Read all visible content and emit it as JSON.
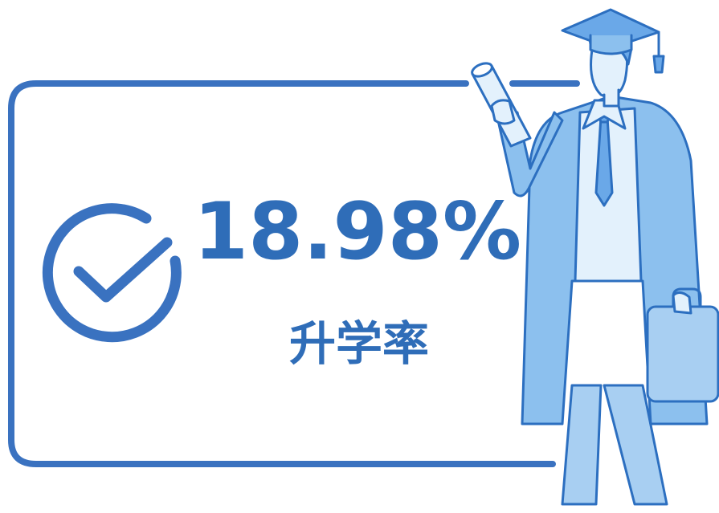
{
  "stat": {
    "value": "18.98%",
    "label": "升学率"
  }
}
